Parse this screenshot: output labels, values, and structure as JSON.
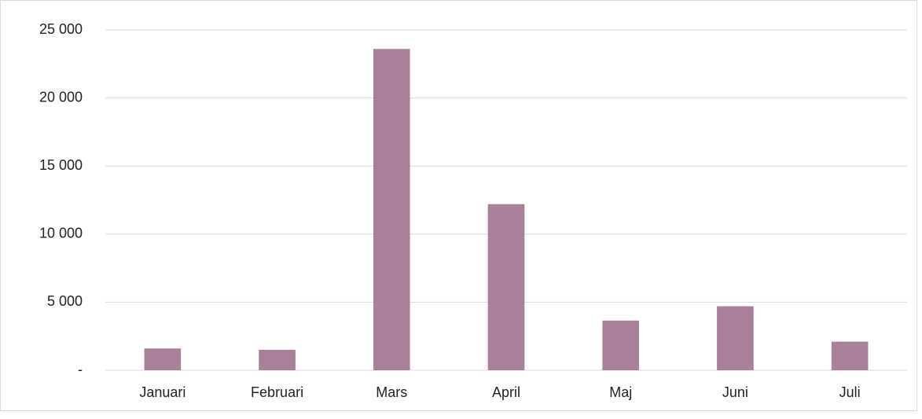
{
  "chart_data": {
    "type": "bar",
    "categories": [
      "Januari",
      "Februari",
      "Mars",
      "April",
      "Maj",
      "Juni",
      "Juli"
    ],
    "values": [
      1600,
      1500,
      23600,
      12200,
      3650,
      4700,
      2100
    ],
    "color": "#a8809a",
    "ylim": [
      0,
      25000
    ],
    "yticks": [
      {
        "value": 0,
        "label": "-"
      },
      {
        "value": 5000,
        "label": "5 000"
      },
      {
        "value": 10000,
        "label": "10 000"
      },
      {
        "value": 15000,
        "label": "15 000"
      },
      {
        "value": 20000,
        "label": "20 000"
      },
      {
        "value": 25000,
        "label": "25 000"
      }
    ],
    "grid": true
  }
}
